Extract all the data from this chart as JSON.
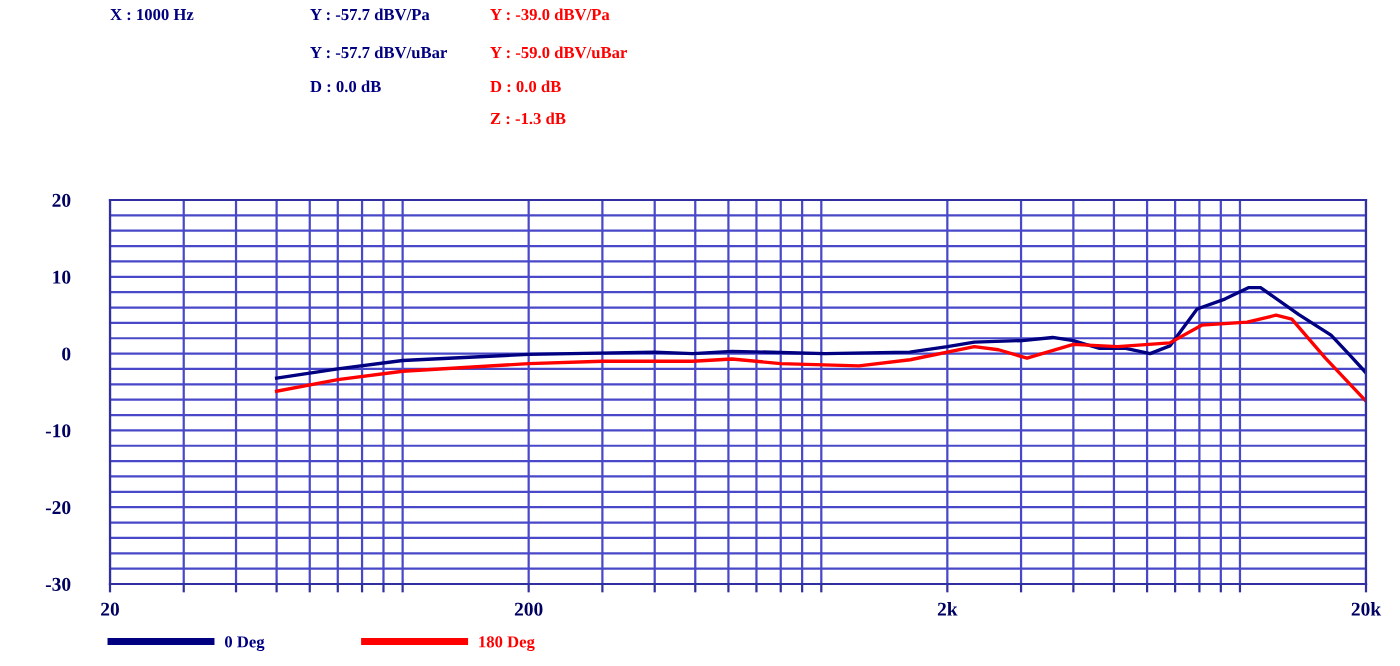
{
  "chart_data": {
    "type": "line",
    "log": "x",
    "xlim": [
      20,
      20000
    ],
    "ylim": [
      -30,
      20
    ],
    "xticks": [
      20,
      {
        "value": 30,
        "label": null
      },
      {
        "value": 40,
        "label": null
      },
      {
        "value": 50,
        "label": null
      },
      {
        "value": 60,
        "label": null
      },
      {
        "value": 70,
        "label": null
      },
      {
        "value": 80,
        "label": null
      },
      {
        "value": 90,
        "label": null
      },
      {
        "value": 100,
        "label": null
      },
      200,
      {
        "value": 300,
        "label": null
      },
      {
        "value": 400,
        "label": null
      },
      {
        "value": 500,
        "label": null
      },
      {
        "value": 600,
        "label": null
      },
      {
        "value": 700,
        "label": null
      },
      {
        "value": 800,
        "label": null
      },
      {
        "value": 900,
        "label": null
      },
      {
        "value": 1000,
        "label": null
      },
      {
        "value": 2000,
        "label": "2k"
      },
      {
        "value": 3000,
        "label": null
      },
      {
        "value": 4000,
        "label": null
      },
      {
        "value": 5000,
        "label": null
      },
      {
        "value": 6000,
        "label": null
      },
      {
        "value": 7000,
        "label": null
      },
      {
        "value": 8000,
        "label": null
      },
      {
        "value": 9000,
        "label": null
      },
      {
        "value": 10000,
        "label": null
      },
      {
        "value": 20000,
        "label": "20k"
      }
    ],
    "yticks": [
      -30,
      {
        "value": -28,
        "label": null
      },
      {
        "value": -26,
        "label": null
      },
      {
        "value": -24,
        "label": null
      },
      {
        "value": -22,
        "label": null
      },
      -20,
      {
        "value": -18,
        "label": null
      },
      {
        "value": -16,
        "label": null
      },
      {
        "value": -14,
        "label": null
      },
      {
        "value": -12,
        "label": null
      },
      -10,
      {
        "value": -8,
        "label": null
      },
      {
        "value": -6,
        "label": null
      },
      {
        "value": -4,
        "label": null
      },
      {
        "value": -2,
        "label": null
      },
      0,
      {
        "value": 2,
        "label": null
      },
      {
        "value": 4,
        "label": null
      },
      {
        "value": 6,
        "label": null
      },
      {
        "value": 8,
        "label": null
      },
      10,
      {
        "value": 12,
        "label": null
      },
      {
        "value": 14,
        "label": null
      },
      {
        "value": 16,
        "label": null
      },
      {
        "value": 18,
        "label": null
      },
      20
    ],
    "grid": true,
    "legend": "bottom",
    "line_style": "solid",
    "marker": "none",
    "series": [
      {
        "name": "0 Deg",
        "color": "#000080",
        "x": [
          50,
          70,
          100,
          200,
          400,
          493,
          612,
          1020,
          1626,
          2000,
          2320,
          3020,
          3570,
          4000,
          4600,
          5300,
          6100,
          6800,
          7900,
          9200,
          10500,
          11200,
          13800,
          16500,
          18300,
          20000
        ],
        "values": [
          -3.2,
          -2.0,
          -0.9,
          -0.1,
          0.2,
          0,
          0.3,
          0,
          0.2,
          0.9,
          1.5,
          1.7,
          2.1,
          1.7,
          0.7,
          0.7,
          0,
          1.0,
          5.8,
          7.1,
          8.6,
          8.6,
          5.1,
          2.4,
          -0.2,
          -2.5
        ]
      },
      {
        "name": "180 Deg",
        "color": "#ff0000",
        "x": [
          50,
          70,
          100,
          200,
          300,
          493,
          612,
          800,
          1230,
          1630,
          2320,
          2650,
          3100,
          4000,
          5100,
          6800,
          8100,
          10400,
          12200,
          13300,
          16000,
          20000
        ],
        "values": [
          -4.9,
          -3.4,
          -2.3,
          -1.3,
          -1.0,
          -1.0,
          -0.7,
          -1.3,
          -1.6,
          -0.8,
          0.9,
          0.5,
          -0.6,
          1.2,
          0.9,
          1.4,
          3.7,
          4.1,
          5.0,
          4.5,
          -0.6,
          -6.2
        ]
      }
    ],
    "annotations": [
      "X : 1000 Hz",
      "Y : -57.7 dBV/Pa",
      "Y : -57.7 dBV/uBar",
      "D : 0.0 dB",
      "Y : -39.0 dBV/Pa",
      "Y : -59.0 dBV/uBar",
      "D : 0.0 dB",
      "Z : -1.3 dB"
    ]
  }
}
